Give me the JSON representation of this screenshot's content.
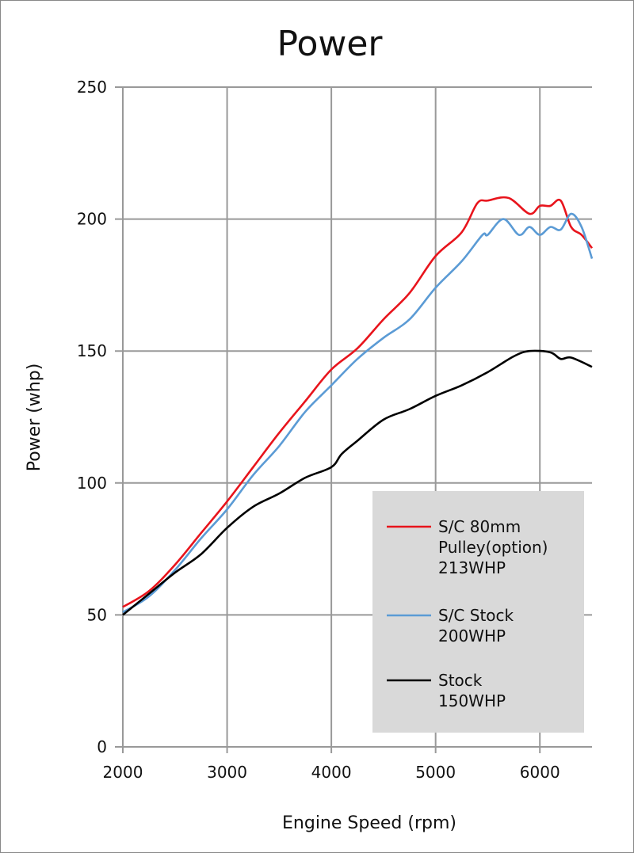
{
  "chart_data": {
    "type": "line",
    "title": "Power",
    "xlabel": "Engine Speed (rpm)",
    "ylabel": "Power (whp)",
    "xlim": [
      2000,
      6500
    ],
    "ylim": [
      0,
      250
    ],
    "xticks": [
      2000,
      3000,
      4000,
      5000,
      6000
    ],
    "yticks": [
      0,
      50,
      100,
      150,
      200,
      250
    ],
    "grid": true,
    "legend_position": "bottom-right",
    "legend_background": "#d9d9d9",
    "series": [
      {
        "name": "S/C 80mm Pulley(option) 213WHP",
        "legend_lines": [
          "S/C 80mm",
          "Pulley(option)",
          "213WHP"
        ],
        "color": "#e8141c",
        "x": [
          2000,
          2250,
          2500,
          2750,
          3000,
          3250,
          3500,
          3750,
          4000,
          4250,
          4500,
          4750,
          5000,
          5250,
          5400,
          5500,
          5700,
          5900,
          6000,
          6100,
          6200,
          6300,
          6400,
          6500
        ],
        "y": [
          53,
          59,
          69,
          81,
          93,
          106,
          119,
          131,
          143,
          151,
          162,
          172,
          186,
          195,
          206,
          207,
          208,
          202,
          205,
          205,
          207,
          197,
          194,
          189
        ]
      },
      {
        "name": "S/C Stock 200WHP",
        "legend_lines": [
          "S/C Stock",
          "200WHP"
        ],
        "color": "#5b9bd5",
        "x": [
          2000,
          2250,
          2500,
          2750,
          3000,
          3250,
          3500,
          3750,
          4000,
          4250,
          4500,
          4750,
          5000,
          5250,
          5450,
          5500,
          5650,
          5800,
          5900,
          6000,
          6100,
          6200,
          6300,
          6400,
          6500
        ],
        "y": [
          51,
          57,
          67,
          79,
          90,
          103,
          114,
          127,
          137,
          147,
          155,
          162,
          174,
          184,
          194,
          194,
          200,
          194,
          197,
          194,
          197,
          196,
          202,
          197,
          185
        ]
      },
      {
        "name": "Stock 150WHP",
        "legend_lines": [
          "Stock",
          "150WHP"
        ],
        "color": "#000000",
        "x": [
          2000,
          2250,
          2500,
          2750,
          3000,
          3250,
          3500,
          3750,
          4000,
          4100,
          4250,
          4500,
          4750,
          5000,
          5250,
          5500,
          5750,
          5900,
          6100,
          6200,
          6300,
          6500
        ],
        "y": [
          50,
          58,
          66,
          73,
          83,
          91,
          96,
          102,
          106,
          111,
          116,
          124,
          128,
          133,
          137,
          142,
          148,
          150,
          149.5,
          147,
          147.5,
          144
        ]
      }
    ]
  }
}
